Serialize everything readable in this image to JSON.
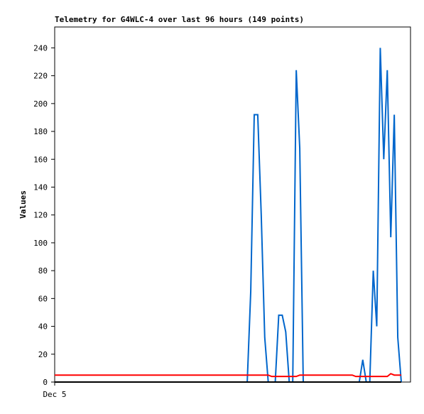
{
  "chart_data": {
    "type": "line",
    "title": "Telemetry for G4WLC-4 over last 96 hours (149 points)",
    "y_label": "Values",
    "categories": [
      "Dec 5",
      null,
      null,
      null,
      null,
      null,
      null,
      null,
      null,
      null,
      null,
      null,
      null,
      null,
      null,
      null,
      null,
      null,
      null,
      null,
      null,
      null,
      null,
      null,
      null,
      null,
      null,
      null,
      null,
      null,
      null,
      null,
      null,
      null,
      null,
      null,
      null,
      null,
      null,
      null,
      null,
      null,
      null,
      null,
      null,
      null,
      null,
      null,
      null,
      null,
      null,
      null,
      null,
      null,
      null,
      null,
      null,
      null,
      null,
      null,
      null,
      null,
      null,
      null,
      null,
      null,
      null,
      null,
      null,
      null,
      null,
      null,
      null,
      null,
      null,
      null,
      null,
      null,
      null,
      null,
      null,
      null,
      null,
      null,
      null,
      null,
      null,
      null,
      null,
      null,
      null,
      null,
      null,
      null,
      null,
      null,
      null,
      null,
      null,
      null
    ],
    "series": [
      {
        "color": "#0066cc",
        "values": [
          0,
          0,
          0,
          0,
          0,
          0,
          0,
          0,
          0,
          0,
          0,
          0,
          0,
          0,
          0,
          0,
          0,
          0,
          0,
          0,
          0,
          0,
          0,
          0,
          0,
          0,
          0,
          0,
          0,
          0,
          0,
          0,
          0,
          0,
          0,
          0,
          0,
          0,
          0,
          0,
          0,
          0,
          0,
          0,
          0,
          0,
          0,
          0,
          0,
          0,
          0,
          0,
          0,
          0,
          0,
          0,
          65,
          192,
          192,
          120,
          32,
          0,
          0,
          0,
          48,
          48,
          36,
          0,
          0,
          224,
          168,
          0,
          0,
          0,
          0,
          0,
          0,
          0,
          0,
          0,
          0,
          0,
          0,
          0,
          0,
          0,
          0,
          0,
          16,
          0,
          0,
          80,
          40,
          240,
          160,
          224,
          104,
          192,
          32,
          0
        ]
      },
      {
        "color": "#ff0000",
        "values": [
          5,
          5,
          5,
          5,
          5,
          5,
          5,
          5,
          5,
          5,
          5,
          5,
          5,
          5,
          5,
          5,
          5,
          5,
          5,
          5,
          5,
          5,
          5,
          5,
          5,
          5,
          5,
          5,
          5,
          5,
          5,
          5,
          5,
          5,
          5,
          5,
          5,
          5,
          5,
          5,
          5,
          5,
          5,
          5,
          5,
          5,
          5,
          5,
          5,
          5,
          5,
          5,
          5,
          5,
          5,
          5,
          5,
          5,
          5,
          5,
          5,
          5,
          4,
          4,
          4,
          4,
          4,
          4,
          4,
          4,
          5,
          5,
          5,
          5,
          5,
          5,
          5,
          5,
          5,
          5,
          5,
          5,
          5,
          5,
          5,
          5,
          4,
          4,
          4,
          4,
          4,
          4,
          4,
          4,
          4,
          4,
          6,
          5,
          5,
          5
        ]
      },
      {
        "color": "#000000",
        "values": [
          0,
          0,
          0,
          0,
          0,
          0,
          0,
          0,
          0,
          0,
          0,
          0,
          0,
          0,
          0,
          0,
          0,
          0,
          0,
          0,
          0,
          0,
          0,
          0,
          0,
          0,
          0,
          0,
          0,
          0,
          0,
          0,
          0,
          0,
          0,
          0,
          0,
          0,
          0,
          0,
          0,
          0,
          0,
          0,
          0,
          0,
          0,
          0,
          0,
          0,
          0,
          0,
          0,
          0,
          0,
          0,
          0,
          0,
          0,
          0,
          0,
          0,
          0,
          0,
          0,
          0,
          0,
          0,
          0,
          0,
          0,
          0,
          0,
          0,
          0,
          0,
          0,
          0,
          0,
          0,
          0,
          0,
          0,
          0,
          0,
          0,
          0,
          0,
          0,
          0,
          0,
          0,
          0,
          0,
          0,
          0,
          0,
          0,
          0,
          0
        ]
      }
    ],
    "ylim": [
      0,
      255
    ],
    "yticks": [
      0,
      20,
      40,
      60,
      80,
      100,
      120,
      140,
      160,
      180,
      200,
      220,
      240
    ]
  }
}
